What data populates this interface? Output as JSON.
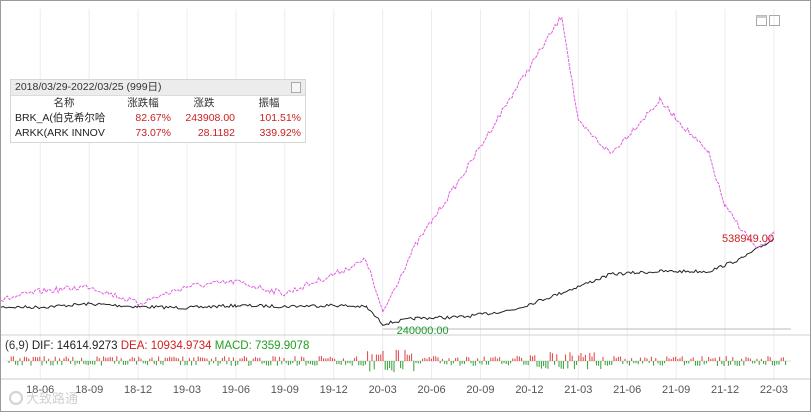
{
  "chart_data": {
    "type": "line",
    "period": "2018/03/29-2022/03/25 (999日)",
    "x_ticks": [
      "18-06",
      "18-09",
      "18-12",
      "19-03",
      "19-06",
      "19-09",
      "19-12",
      "20-03",
      "20-06",
      "20-09",
      "20-12",
      "21-03",
      "21-06",
      "21-09",
      "21-12",
      "22-03"
    ],
    "table": {
      "headers": [
        "名称",
        "涨跌幅",
        "涨跌",
        "振幅"
      ],
      "rows": [
        {
          "name": "BRK_A(伯克希尔哈",
          "change_pct": "82.67%",
          "change": "243908.00",
          "amplitude": "101.51%"
        },
        {
          "name": "ARKK(ARK INNOV",
          "change_pct": "73.07%",
          "change": "28.1182",
          "amplitude": "339.92%"
        }
      ]
    },
    "annotations": {
      "low_label": "240000.00",
      "high_label": "538949.00"
    },
    "macd": {
      "prefix": "(6,9)",
      "dif_label": "DIF: 14614.9273",
      "dea_label": "DEA: 10934.9734",
      "macd_label": "MACD: 7359.9078"
    },
    "series": [
      {
        "name": "BRK_A",
        "color": "#222222",
        "x": [
          "2018-03",
          "2018-06",
          "2018-09",
          "2018-12",
          "2019-03",
          "2019-06",
          "2019-09",
          "2019-12",
          "2020-02",
          "2020-03",
          "2020-05",
          "2020-08",
          "2020-11",
          "2021-02",
          "2021-05",
          "2021-08",
          "2021-11",
          "2022-01",
          "2022-03"
        ],
        "values": [
          300000,
          299000,
          311000,
          301000,
          297000,
          305000,
          302000,
          306000,
          300000,
          240000,
          260000,
          265000,
          290000,
          350000,
          415000,
          425000,
          425000,
          470000,
          538949
        ]
      },
      {
        "name": "ARKK",
        "color": "#e060e0",
        "x": [
          "2018-03",
          "2018-06",
          "2018-09",
          "2018-12",
          "2019-03",
          "2019-06",
          "2019-09",
          "2019-12",
          "2020-02",
          "2020-03",
          "2020-05",
          "2020-08",
          "2020-11",
          "2021-02",
          "2021-03",
          "2021-05",
          "2021-08",
          "2021-11",
          "2021-12",
          "2022-02",
          "2022-03"
        ],
        "values": [
          38.5,
          43,
          45,
          38,
          45,
          47,
          42,
          50,
          56,
          34,
          62,
          92,
          125,
          157,
          113,
          100,
          122,
          100,
          78,
          60,
          66.6
        ]
      }
    ]
  },
  "window": {
    "restore_icon": "window-restore-icon"
  },
  "watermark": {
    "text": "大致路通"
  }
}
